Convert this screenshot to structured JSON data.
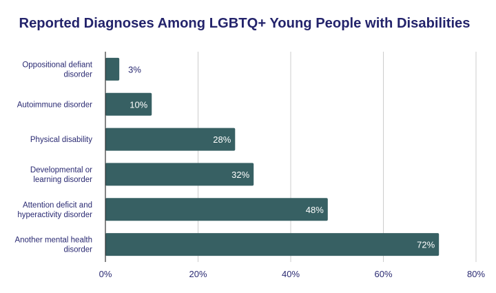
{
  "chart_data": {
    "type": "bar",
    "orientation": "horizontal",
    "title": "Reported Diagnoses Among LGBTQ+ Young People with Disabilities",
    "categories": [
      [
        "Oppositional defiant",
        "disorder"
      ],
      [
        "Autoimmune disorder"
      ],
      [
        "Physical disability"
      ],
      [
        "Developmental or",
        "learning disorder"
      ],
      [
        "Attention deficit and",
        "hyperactivity disorder"
      ],
      [
        "Another mental health",
        "disorder"
      ]
    ],
    "values": [
      3,
      10,
      28,
      32,
      48,
      72
    ],
    "data_labels": [
      "3%",
      "10%",
      "28%",
      "32%",
      "48%",
      "72%"
    ],
    "xlim": [
      0,
      80
    ],
    "xticks": [
      0,
      20,
      40,
      60,
      80
    ],
    "xtick_labels": [
      "0%",
      "20%",
      "40%",
      "60%",
      "80%"
    ],
    "grid": true,
    "colors": {
      "bar": "#376063",
      "text": "#2a2a72",
      "grid": "#cccccc"
    }
  }
}
